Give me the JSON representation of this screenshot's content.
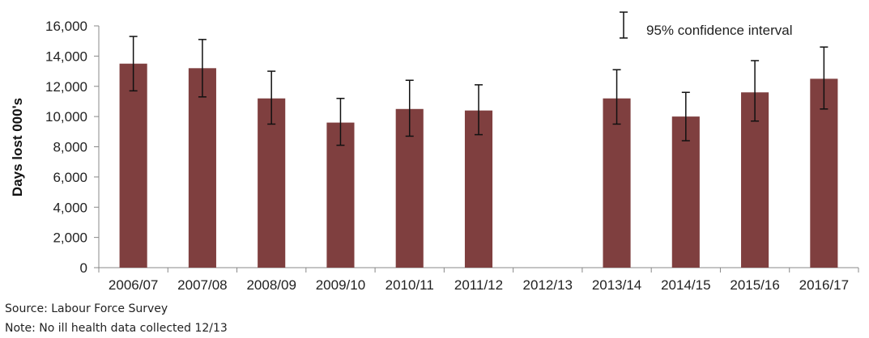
{
  "chart_data": {
    "type": "bar",
    "categories": [
      "2006/07",
      "2007/08",
      "2008/09",
      "2009/10",
      "2010/11",
      "2011/12",
      "2012/13",
      "2013/14",
      "2014/15",
      "2015/16",
      "2016/17"
    ],
    "values": [
      13500,
      13200,
      11200,
      9600,
      10500,
      10400,
      null,
      11200,
      10000,
      11600,
      12500
    ],
    "ci_lower": [
      11700,
      11300,
      9500,
      8100,
      8700,
      8800,
      null,
      9500,
      8400,
      9700,
      10500
    ],
    "ci_upper": [
      15300,
      15100,
      13000,
      11200,
      12400,
      12100,
      null,
      13100,
      11600,
      13700,
      14600
    ],
    "ylabel": "Days lost 000's",
    "xlabel": "",
    "ylim": [
      0,
      16000
    ],
    "yticks": [
      0,
      2000,
      4000,
      6000,
      8000,
      10000,
      12000,
      14000,
      16000
    ],
    "ytick_labels": [
      "0",
      "2,000",
      "4,000",
      "6,000",
      "8,000",
      "10,000",
      "12,000",
      "14,000",
      "16,000"
    ],
    "legend": {
      "label": "95% confidence interval",
      "position": "top-right"
    },
    "grid": false,
    "colors": {
      "bar": "#7f3f3f",
      "errorbar": "#111111",
      "axis": "#888888"
    }
  },
  "footnotes": {
    "source": "Source: Labour Force Survey",
    "note": "Note: No ill health data collected 12/13"
  }
}
